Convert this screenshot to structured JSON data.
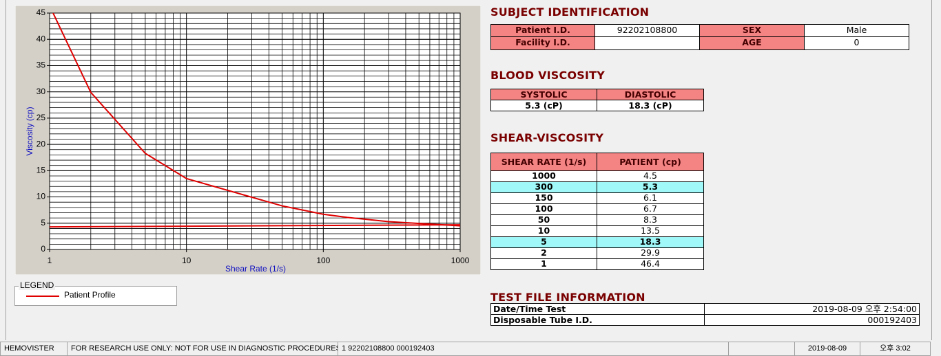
{
  "chart_data": {
    "type": "line",
    "x_label": "Shear Rate (1/s)",
    "y_label": "Viscosity (cp)",
    "xscale": "log",
    "xlim": [
      1,
      1000
    ],
    "ylim": [
      0,
      45
    ],
    "xticks": [
      1,
      10,
      100,
      1000
    ],
    "yticks": [
      0,
      5,
      10,
      15,
      20,
      25,
      30,
      35,
      40,
      45
    ],
    "grid": true,
    "legend_title": "LEGEND",
    "series": [
      {
        "name": "Patient Profile",
        "color": "#e00000",
        "x": [
          1,
          2,
          5,
          10,
          50,
          100,
          150,
          300,
          1000
        ],
        "values": [
          46.4,
          29.9,
          18.3,
          13.5,
          8.3,
          6.7,
          6.1,
          5.3,
          4.5
        ]
      },
      {
        "color": "#e00000",
        "x": [
          1,
          1000
        ],
        "values": [
          4.3,
          4.7
        ]
      }
    ]
  },
  "subject_identification": {
    "title": "SUBJECT IDENTIFICATION",
    "patient_id_label": "Patient I.D.",
    "patient_id": "92202108800",
    "sex_label": "SEX",
    "sex": "Male",
    "facility_id_label": "Facility I.D.",
    "age_label": "AGE",
    "age": "0"
  },
  "blood_viscosity": {
    "title": "BLOOD VISCOSITY",
    "headers": [
      "SYSTOLIC",
      "DIASTOLIC"
    ],
    "values": [
      "5.3 (cP)",
      "18.3 (cP)"
    ]
  },
  "shear_viscosity": {
    "title": "SHEAR-VISCOSITY",
    "headers": [
      "SHEAR RATE (1/s)",
      "PATIENT (cp)"
    ],
    "rows": [
      [
        "1000",
        "4.5"
      ],
      [
        "300",
        "5.3"
      ],
      [
        "150",
        "6.1"
      ],
      [
        "100",
        "6.7"
      ],
      [
        "50",
        "8.3"
      ],
      [
        "10",
        "13.5"
      ],
      [
        "5",
        "18.3"
      ],
      [
        "2",
        "29.9"
      ],
      [
        "1",
        "46.4"
      ]
    ]
  },
  "test_file_information": {
    "title": "TEST FILE INFORMATION",
    "rows": [
      [
        "Date/Time Test",
        "2019-08-09   오후 2:54:00"
      ],
      [
        "Disposable Tube I.D.",
        "000192403"
      ]
    ]
  },
  "status_bar": [
    "HEMOVISTER",
    "FOR RESEARCH USE ONLY: NOT FOR USE IN DIAGNOSTIC PROCEDURES",
    "1  92202108800  000192403",
    "2019-08-09",
    "오후 3:02"
  ]
}
